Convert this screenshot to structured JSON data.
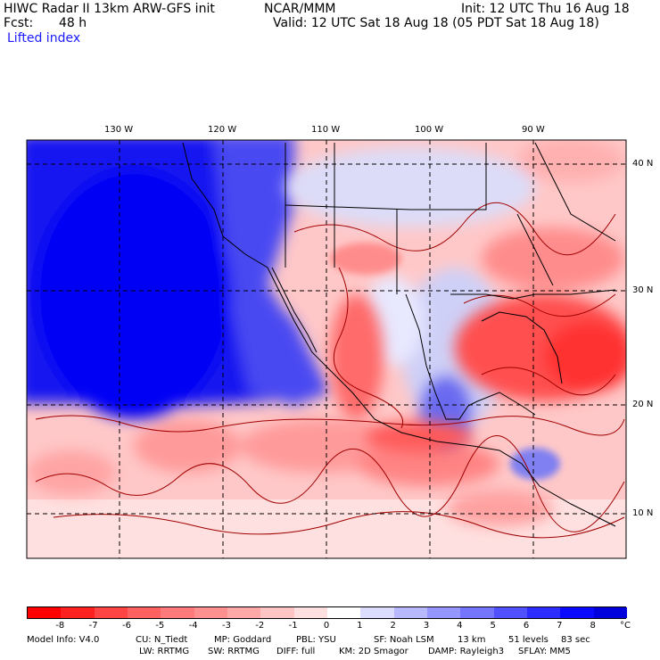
{
  "header": {
    "title": "HIWC Radar II 13km ARW-GFS init",
    "org": "NCAR/MMM",
    "init": "Init: 12 UTC Thu 16 Aug 18",
    "fcst_label": "Fcst:",
    "fcst_value": "48 h",
    "valid": "Valid: 12 UTC Sat 18 Aug 18 (05 PDT Sat 18 Aug 18)",
    "field": "Lifted index"
  },
  "longitude_labels": [
    "130 W",
    "120 W",
    "110 W",
    "100 W",
    "90 W"
  ],
  "latitude_labels": [
    "40 N",
    "30 N",
    "20 N",
    "10 N"
  ],
  "colorbar": {
    "ticks": [
      "-8",
      "-7",
      "-6",
      "-5",
      "-4",
      "-3",
      "-2",
      "-1",
      "0",
      "1",
      "2",
      "3",
      "4",
      "5",
      "6",
      "7",
      "8"
    ],
    "unit": "°C",
    "colors": [
      "#ff0000",
      "#ff2020",
      "#ff4444",
      "#ff6060",
      "#ff7a7a",
      "#ff9090",
      "#ffa8a8",
      "#ffc4c4",
      "#ffe0e0",
      "#ffffff",
      "#dcdcff",
      "#b8b8ff",
      "#9696ff",
      "#7474ff",
      "#5050ff",
      "#2c2cff",
      "#0a0aff",
      "#0000dd"
    ]
  },
  "model_info": {
    "line1": [
      "Model Info: V4.0",
      "CU: N_Tiedt",
      "MP: Goddard",
      "PBL: YSU",
      "SF: Noah LSM",
      "13 km",
      "51 levels",
      "83 sec"
    ],
    "line2": [
      "LW: RRTMG",
      "SW: RRTMG",
      "DIFF: full",
      "KM: 2D Smagor",
      "DAMP: Rayleigh3",
      "SFLAY: MM5"
    ]
  }
}
